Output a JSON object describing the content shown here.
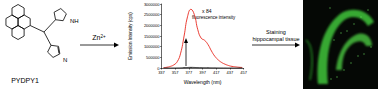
{
  "molecule": {
    "label": "PYDPY1",
    "atom_labels": [
      "NH",
      "N"
    ]
  },
  "reagent": {
    "text": "Zn",
    "superscript": "2+"
  },
  "step": {
    "lines": [
      "Staining",
      "hippocampal tissue"
    ]
  },
  "chart_data": {
    "type": "line",
    "xlabel": "Wavelength (nm)",
    "ylabel": "Emission Intensity (cps)",
    "annotations": [
      "x 84",
      "fluorescence intensity"
    ],
    "x": [
      340,
      345,
      350,
      355,
      360,
      365,
      370,
      375,
      380,
      385,
      390,
      395,
      400,
      405,
      410,
      415,
      420,
      425,
      430,
      435,
      440,
      445,
      450,
      455
    ],
    "series": [
      {
        "color": "#e8281e",
        "values": [
          20000,
          40000,
          80000,
          150000,
          300000,
          700000,
          1500000,
          2400000,
          2750000,
          2500000,
          1800000,
          1400000,
          1300000,
          1100000,
          800000,
          550000,
          380000,
          260000,
          180000,
          120000,
          80000,
          60000,
          40000,
          30000
        ]
      },
      {
        "color": "#000000",
        "values": [
          0,
          0,
          1000,
          2000,
          4000,
          8000,
          18000,
          28000,
          33000,
          30000,
          21000,
          17000,
          15000,
          13000,
          10000,
          7000,
          5000,
          3000,
          2000,
          1500,
          1000,
          700,
          500,
          400
        ]
      }
    ],
    "xlim": [
      337,
      457
    ],
    "xticks": [
      337,
      357,
      377,
      397,
      417,
      437,
      457
    ],
    "ylim": [
      0,
      3000000
    ],
    "yticks": [
      0,
      500000,
      1000000,
      1500000,
      2000000,
      2500000,
      3000000
    ],
    "grid": false
  }
}
